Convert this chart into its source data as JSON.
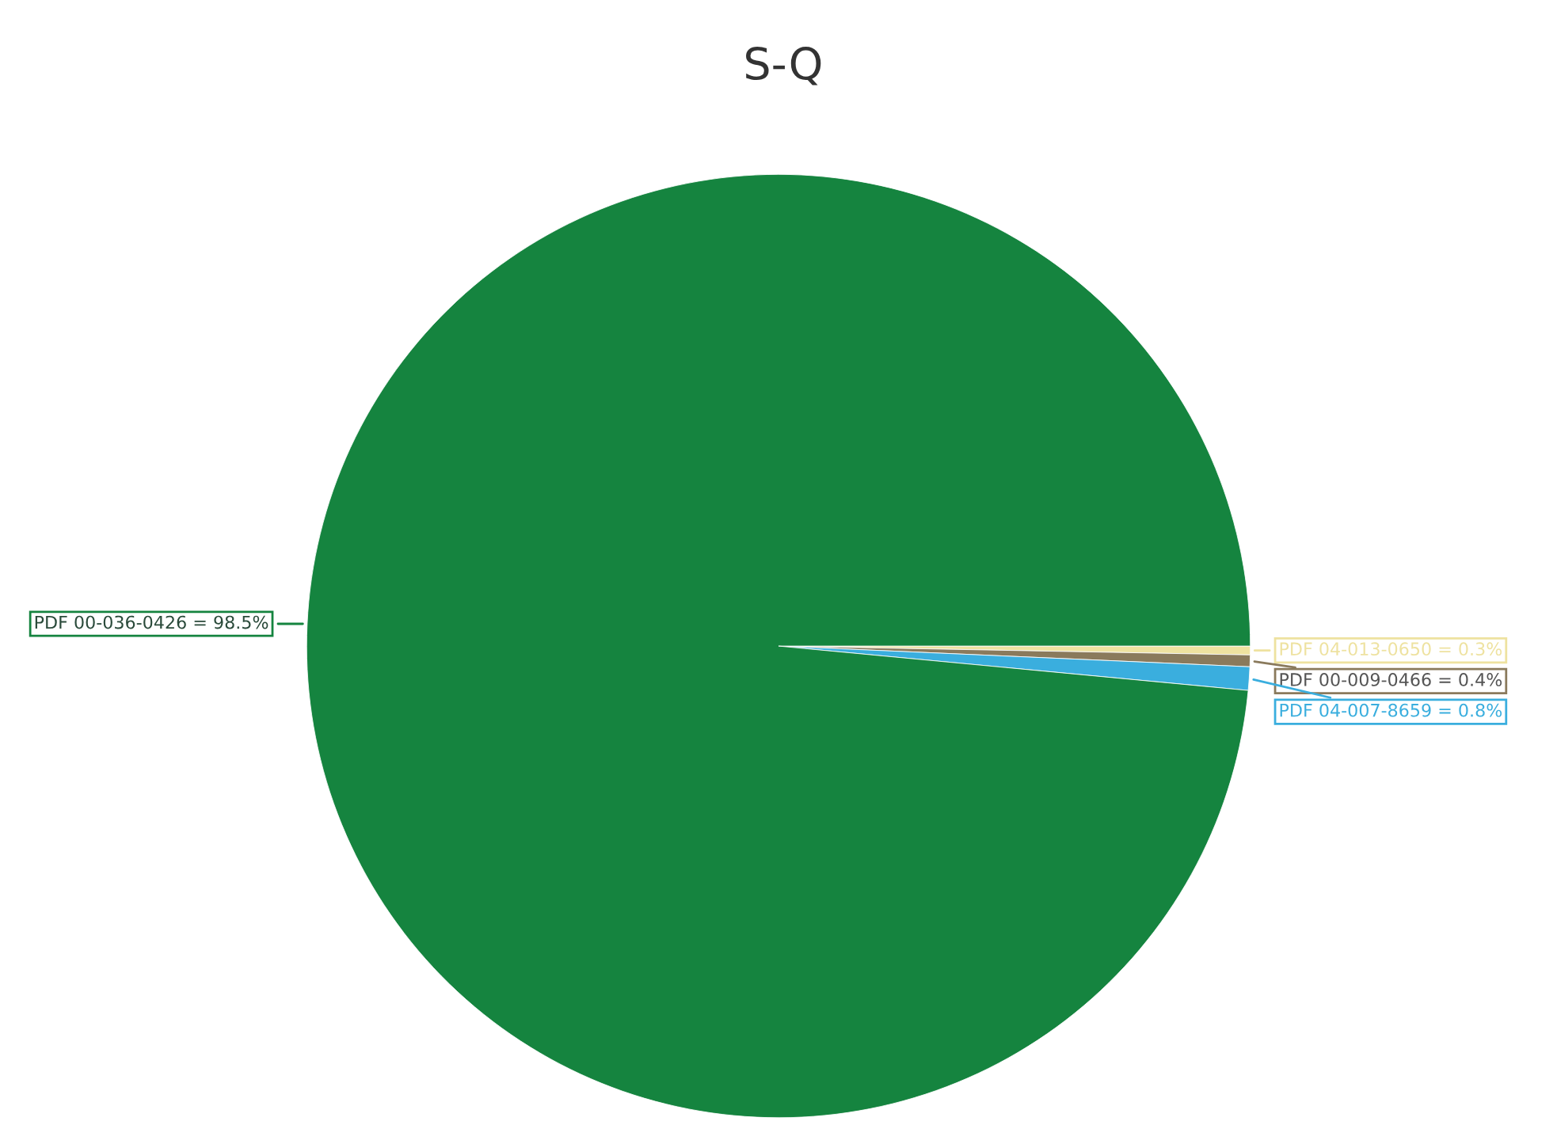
{
  "chart_data": {
    "type": "pie",
    "title": "S-Q",
    "categories": [
      "PDF 00-036-0426 = 98.5%",
      "PDF 04-013-0650 = 0.3%",
      "PDF 00-009-0466 = 0.4%",
      "PDF 04-007-8659 = 0.8%"
    ],
    "values": [
      98.5,
      0.3,
      0.4,
      0.8
    ],
    "colors": [
      "#15843f",
      "#eee2a0",
      "#8a7a5c",
      "#3aaede"
    ]
  }
}
